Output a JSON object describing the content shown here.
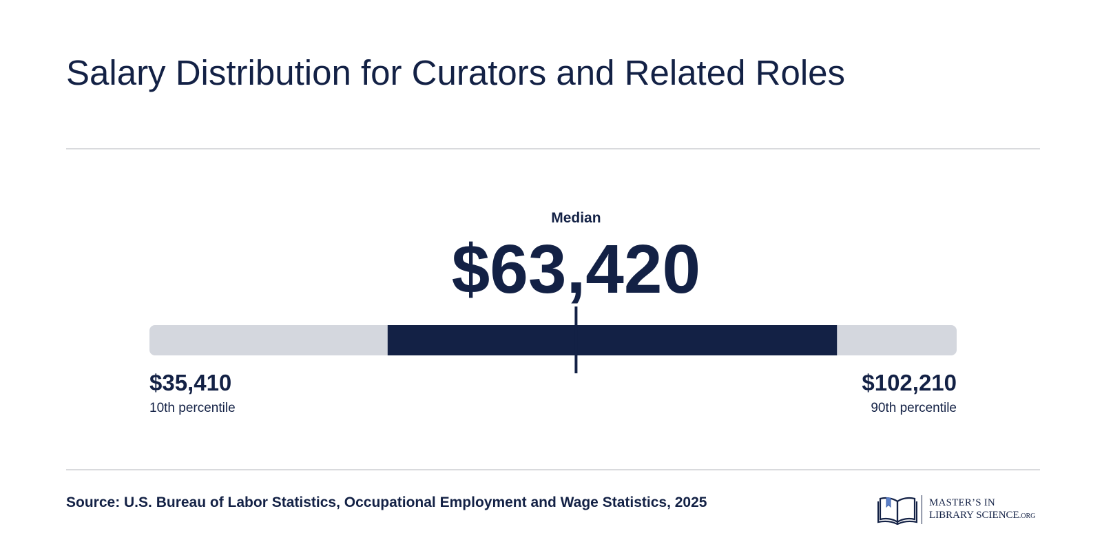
{
  "title": "Salary Distribution for Curators and Related Roles",
  "chart_data": {
    "type": "range",
    "title": "Salary Distribution for Curators and Related Roles",
    "scale_min": 0,
    "scale_max": 120000,
    "median": {
      "label": "Median",
      "value": 63420,
      "display": "$63,420"
    },
    "p10": {
      "label": "10th percentile",
      "value": 35410,
      "display": "$35,410"
    },
    "p90": {
      "label": "90th percentile",
      "value": 102210,
      "display": "$102,210"
    },
    "colors": {
      "track": "#d4d7de",
      "range": "#132145",
      "text": "#132145"
    }
  },
  "source": "Source: U.S. Bureau of Labor Statistics, Occupational Employment and Wage Statistics, 2025",
  "logo": {
    "line1": "MASTER’S IN",
    "line2": "LIBRARY SCIENCE",
    "suffix": ".ORG",
    "icon": "open-book-icon"
  }
}
